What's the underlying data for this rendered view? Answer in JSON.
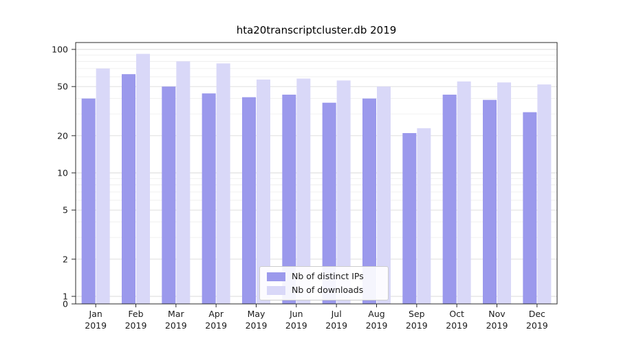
{
  "colors": {
    "grid_major": "#d9d9d9",
    "grid_minor": "#ececec",
    "axis": "#2a2a2a",
    "tick_text": "#1a1a1a",
    "legend_border": "#cccccc"
  },
  "chart_data": {
    "type": "bar",
    "title": "hta20transcriptcluster.db 2019",
    "categories": [
      "Jan 2019",
      "Feb 2019",
      "Mar 2019",
      "Apr 2019",
      "May 2019",
      "Jun 2019",
      "Jul 2019",
      "Aug 2019",
      "Sep 2019",
      "Oct 2019",
      "Nov 2019",
      "Dec 2019"
    ],
    "series": [
      {
        "name": "Nb of distinct IPs",
        "color": "#9b99ec",
        "values": [
          40,
          63,
          50,
          44,
          41,
          43,
          37,
          40,
          21,
          43,
          39,
          31
        ]
      },
      {
        "name": "Nb of downloads",
        "color": "#d9d8f8",
        "values": [
          70,
          92,
          80,
          77,
          57,
          58,
          56,
          50,
          23,
          55,
          54,
          52
        ]
      }
    ],
    "xlabel": "",
    "ylabel": "",
    "yscale": "symlog",
    "yticks": [
      0,
      1,
      2,
      5,
      10,
      20,
      50,
      100
    ],
    "yticks_minor": [
      3,
      4,
      6,
      7,
      8,
      9,
      30,
      40,
      60,
      70,
      80,
      90
    ],
    "ylim": [
      0,
      113
    ],
    "grid": true,
    "legend_position": "lower center"
  }
}
